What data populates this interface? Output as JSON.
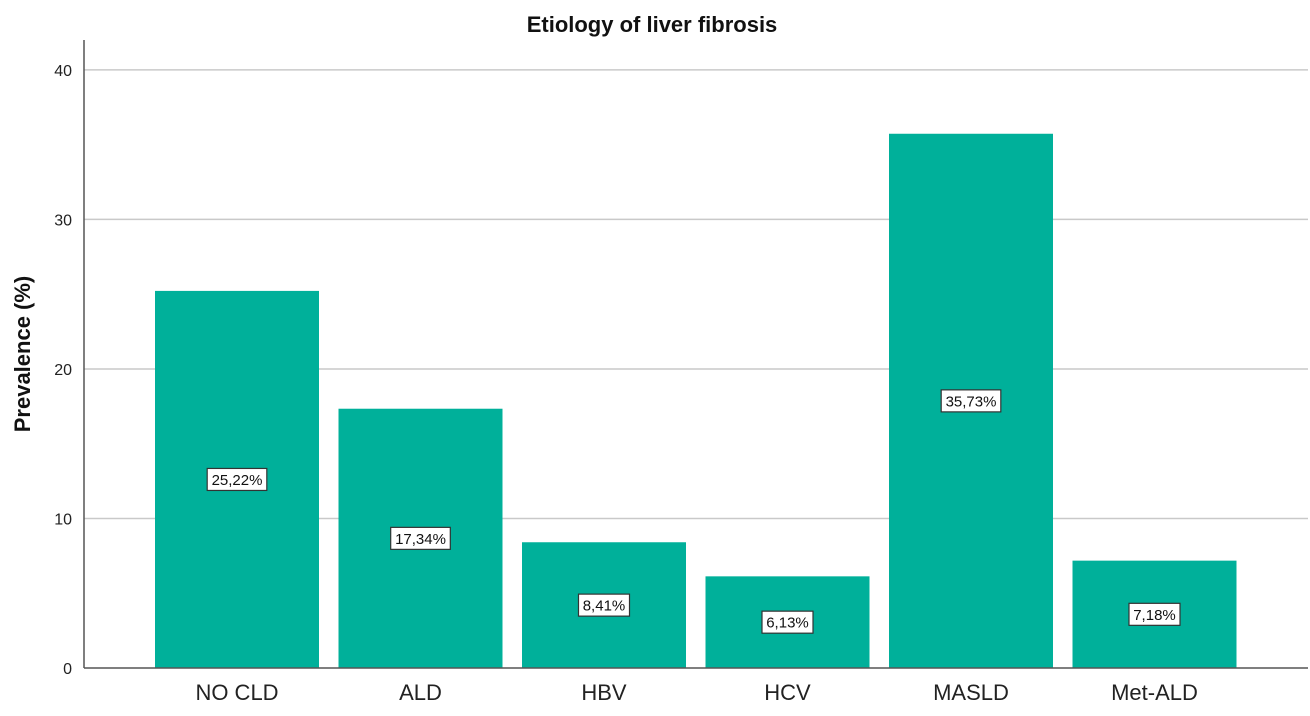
{
  "chart_data": {
    "type": "bar",
    "title": "Etiology of liver fibrosis",
    "xlabel": "",
    "ylabel": "Prevalence (%)",
    "categories": [
      "NO CLD",
      "ALD",
      "HBV",
      "HCV",
      "MASLD",
      "Met-ALD"
    ],
    "values": [
      25.22,
      17.34,
      8.41,
      6.13,
      35.73,
      7.18
    ],
    "data_labels": [
      "25,22%",
      "17,34%",
      "8,41%",
      "6,13%",
      "35,73%",
      "7,18%"
    ],
    "ylim": [
      0,
      42
    ],
    "yticks": [
      0,
      10,
      20,
      30,
      40
    ],
    "grid": true,
    "legend": "none",
    "bar_color": "#00b09a"
  }
}
